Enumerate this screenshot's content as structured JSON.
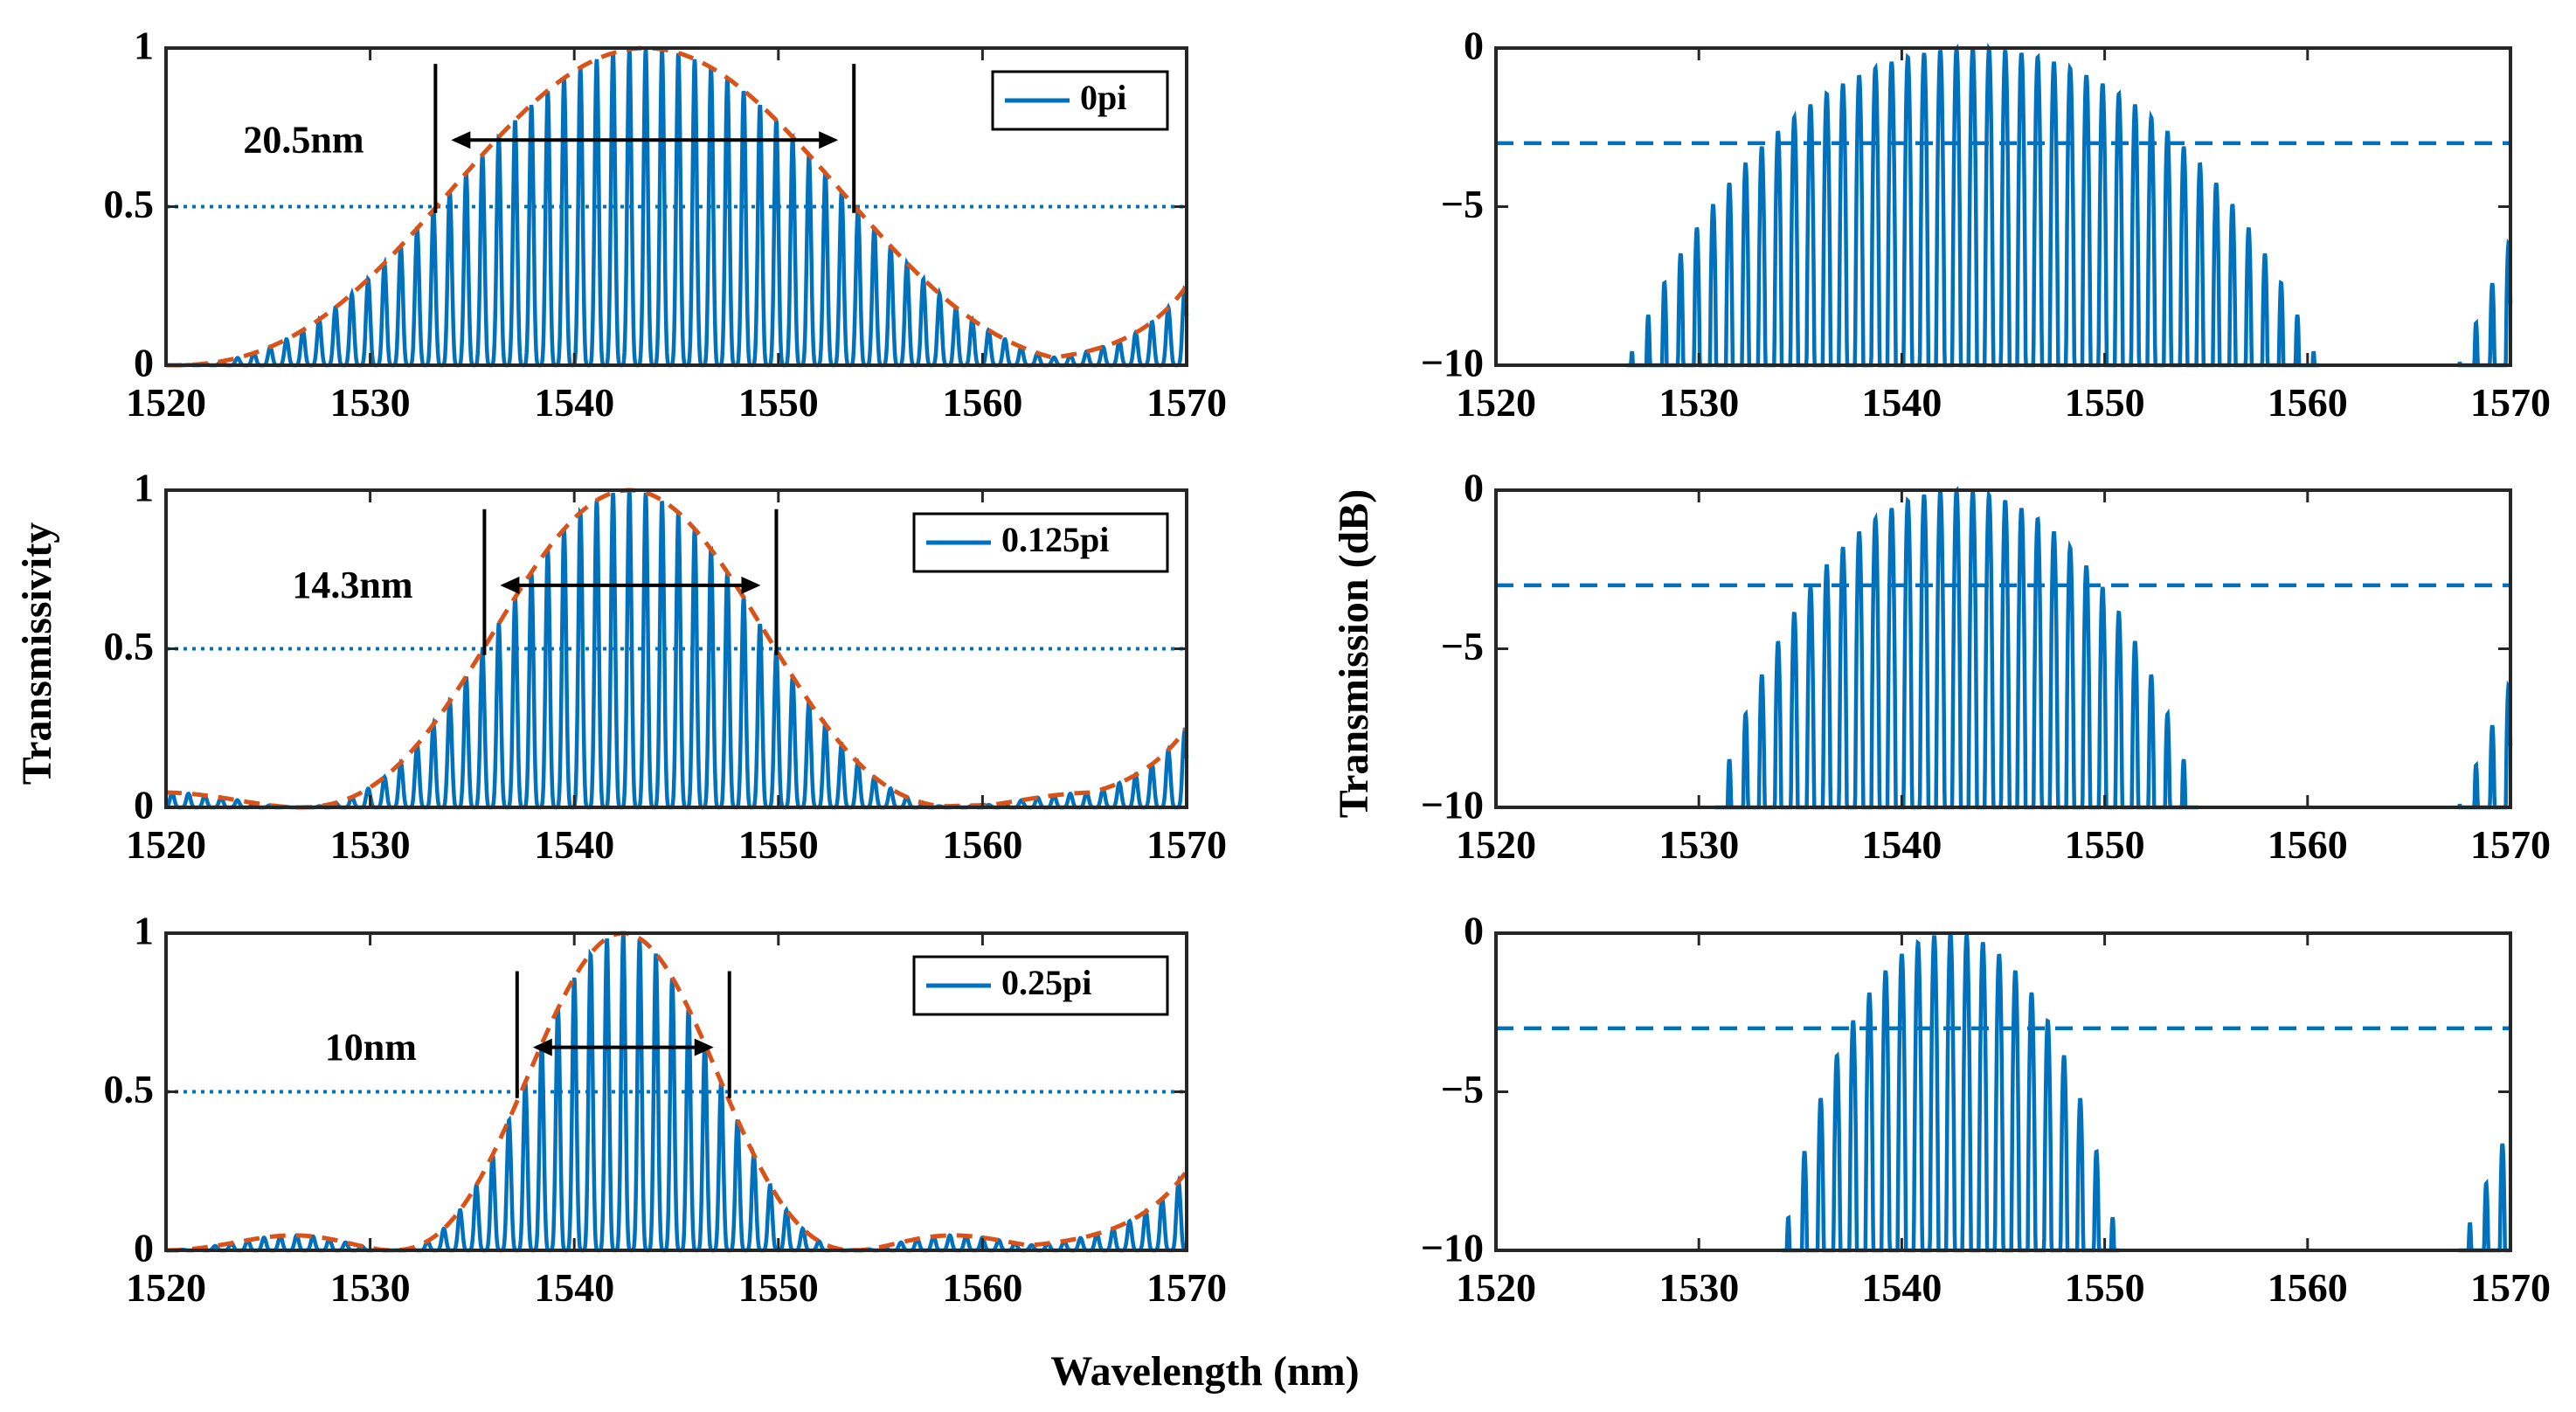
{
  "figure": {
    "xlabel": "Wavelength (nm)",
    "left_ylabel": "Transmissivity",
    "right_ylabel": "Transmission (dB)",
    "colors": {
      "series": "#0072BD",
      "envelope": "#D95319",
      "axis": "#262626",
      "annotation": "#000000"
    }
  },
  "chart_data": [
    {
      "type": "line",
      "scale": "linear",
      "row": 0,
      "xlim": [
        1520,
        1570
      ],
      "ylim": [
        0,
        1
      ],
      "xticks": [
        "1520",
        "1530",
        "1540",
        "1550",
        "1560",
        "1570"
      ],
      "yticks": [
        "0",
        "0.5",
        "1"
      ],
      "series": [
        {
          "name": "0pi",
          "kind": "comb",
          "center": 1543.5,
          "fwhm": 20.5,
          "period": 0.8,
          "side_peak": 1570
        },
        {
          "name": "envelope",
          "kind": "dashed-envelope"
        },
        {
          "name": "half-max",
          "kind": "dotted-level",
          "y": 0.5
        }
      ],
      "legend": "0pi",
      "annotation": {
        "text": "20.5nm",
        "x1": 1533.2,
        "x2": 1553.7,
        "y": 0.71
      }
    },
    {
      "type": "line",
      "scale": "linear",
      "row": 1,
      "xlim": [
        1520,
        1570
      ],
      "ylim": [
        0,
        1
      ],
      "xticks": [
        "1520",
        "1530",
        "1540",
        "1550",
        "1560",
        "1570"
      ],
      "yticks": [
        "0",
        "0.5",
        "1"
      ],
      "series": [
        {
          "name": "0.125pi",
          "kind": "comb",
          "center": 1542.7,
          "fwhm": 14.3,
          "period": 0.8,
          "side_peak": 1570
        },
        {
          "name": "envelope",
          "kind": "dashed-envelope"
        },
        {
          "name": "half-max",
          "kind": "dotted-level",
          "y": 0.5
        }
      ],
      "legend": "0.125pi",
      "annotation": {
        "text": "14.3nm",
        "x1": 1535.6,
        "x2": 1549.9,
        "y": 0.7
      }
    },
    {
      "type": "line",
      "scale": "linear",
      "row": 2,
      "xlim": [
        1520,
        1570
      ],
      "ylim": [
        0,
        1
      ],
      "xticks": [
        "1520",
        "1530",
        "1540",
        "1550",
        "1560",
        "1570"
      ],
      "yticks": [
        "0",
        "0.5",
        "1"
      ],
      "series": [
        {
          "name": "0.25pi",
          "kind": "comb",
          "center": 1542.4,
          "fwhm": 10,
          "period": 0.8,
          "side_peak": 1570
        },
        {
          "name": "envelope",
          "kind": "dashed-envelope"
        },
        {
          "name": "half-max",
          "kind": "dotted-level",
          "y": 0.5
        }
      ],
      "legend": "0.25pi",
      "annotation": {
        "text": "10nm",
        "x1": 1537.2,
        "x2": 1547.6,
        "y": 0.64
      }
    },
    {
      "type": "line",
      "scale": "dB",
      "row": 0,
      "xlim": [
        1520,
        1570
      ],
      "ylim": [
        -10,
        0
      ],
      "xticks": [
        "1520",
        "1530",
        "1540",
        "1550",
        "1560",
        "1570"
      ],
      "yticks": [
        "−10",
        "−5",
        "0"
      ],
      "series": [
        {
          "name": "0pi (dB)",
          "kind": "comb-db",
          "center": 1543.5,
          "fwhm": 20.5,
          "period": 0.8,
          "side_peak": 1570
        },
        {
          "name": "−3 dB level",
          "kind": "dashed-level",
          "y": -3
        }
      ]
    },
    {
      "type": "line",
      "scale": "dB",
      "row": 1,
      "xlim": [
        1520,
        1570
      ],
      "ylim": [
        -10,
        0
      ],
      "xticks": [
        "1520",
        "1530",
        "1540",
        "1550",
        "1560",
        "1570"
      ],
      "yticks": [
        "−10",
        "−5",
        "0"
      ],
      "series": [
        {
          "name": "0.125pi (dB)",
          "kind": "comb-db",
          "center": 1542.7,
          "fwhm": 14.3,
          "period": 0.8,
          "side_peak": 1570
        },
        {
          "name": "−3 dB level",
          "kind": "dashed-level",
          "y": -3
        }
      ]
    },
    {
      "type": "line",
      "scale": "dB",
      "row": 2,
      "xlim": [
        1520,
        1570
      ],
      "ylim": [
        -10,
        0
      ],
      "xticks": [
        "1520",
        "1530",
        "1540",
        "1550",
        "1560",
        "1570"
      ],
      "yticks": [
        "−10",
        "−5",
        "0"
      ],
      "series": [
        {
          "name": "0.25pi (dB)",
          "kind": "comb-db",
          "center": 1542.4,
          "fwhm": 10,
          "period": 0.8,
          "side_peak": 1570
        },
        {
          "name": "−3 dB level",
          "kind": "dashed-level",
          "y": -3
        }
      ]
    }
  ]
}
